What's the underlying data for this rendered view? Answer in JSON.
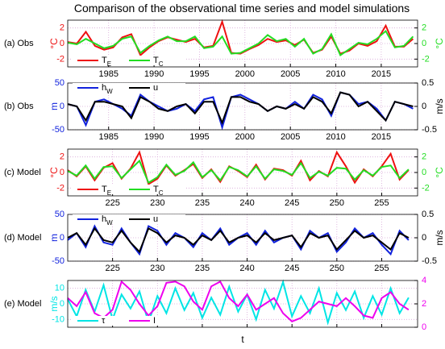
{
  "title": "Comparison of the observational time series and model simulations",
  "chart_data": [
    {
      "type": "line",
      "panel_label": "(a) Obs",
      "ylabel": "°C",
      "y2label": "°C",
      "legend": "lower left",
      "grid": true,
      "x": [
        1980.5,
        1981.5,
        1982.5,
        1983.5,
        1984.5,
        1985.5,
        1986.5,
        1987.5,
        1988.5,
        1989.5,
        1990.5,
        1991.5,
        1992.5,
        1993.5,
        1994.5,
        1995.5,
        1996.5,
        1997.5,
        1998.5,
        1999.5,
        2000.5,
        2001.5,
        2002.5,
        2003.5,
        2004.5,
        2005.5,
        2006.5,
        2007.5,
        2008.5,
        2009.5,
        2010.5,
        2011.5,
        2012.5,
        2013.5,
        2014.5,
        2015.5,
        2016.5,
        2017.5,
        2018.5
      ],
      "xlim": [
        1980.5,
        2019
      ],
      "xticks": [
        1985,
        1990,
        1995,
        2000,
        2005,
        2010,
        2015
      ],
      "ylim": [
        -3,
        3
      ],
      "yticks": [
        -2,
        0,
        2
      ],
      "y2lim": [
        -3,
        3
      ],
      "y2ticks": [
        -2,
        0,
        2
      ],
      "series": [
        {
          "name": "T_E",
          "color": "#ee1111",
          "axis": "y",
          "values": [
            0.2,
            0.0,
            1.5,
            -0.3,
            -0.8,
            -0.5,
            0.8,
            1.2,
            -1.5,
            -0.5,
            0.3,
            0.8,
            0.5,
            0.2,
            0.6,
            -0.5,
            -0.3,
            2.8,
            -1.2,
            -1.3,
            -0.7,
            -0.2,
            0.6,
            0.2,
            0.4,
            -0.2,
            0.5,
            -1.2,
            -0.8,
            0.9,
            -1.3,
            -0.9,
            0.0,
            -0.3,
            0.3,
            2.3,
            -0.4,
            -0.4,
            0.6
          ]
        },
        {
          "name": "T_C",
          "color": "#22dd22",
          "axis": "y2",
          "values": [
            0.1,
            -0.1,
            0.6,
            0.0,
            -0.6,
            -0.3,
            0.6,
            0.9,
            -1.2,
            -0.3,
            0.4,
            0.9,
            0.3,
            0.3,
            0.9,
            -0.6,
            -0.4,
            0.9,
            -1.3,
            -1.2,
            -0.6,
            0.0,
            1.1,
            0.3,
            0.6,
            -0.4,
            0.6,
            -1.3,
            -0.7,
            1.2,
            -1.5,
            -0.7,
            0.1,
            -0.1,
            0.6,
            1.6,
            -0.5,
            -0.3,
            0.9
          ]
        }
      ]
    },
    {
      "type": "line",
      "panel_label": "(b) Obs",
      "ylabel": "m",
      "y2label": "m/s",
      "legend": "upper left",
      "grid": true,
      "x": [
        1980.5,
        1981.5,
        1982.5,
        1983.5,
        1984.5,
        1985.5,
        1986.5,
        1987.5,
        1988.5,
        1989.5,
        1990.5,
        1991.5,
        1992.5,
        1993.5,
        1994.5,
        1995.5,
        1996.5,
        1997.5,
        1998.5,
        1999.5,
        2000.5,
        2001.5,
        2002.5,
        2003.5,
        2004.5,
        2005.5,
        2006.5,
        2007.5,
        2008.5,
        2009.5,
        2010.5,
        2011.5,
        2012.5,
        2013.5,
        2014.5,
        2015.5,
        2016.5,
        2017.5,
        2018.5
      ],
      "xlim": [
        1980.5,
        2019
      ],
      "xticks": [
        1985,
        1990,
        1995,
        2000,
        2005,
        2010,
        2015
      ],
      "ylim": [
        -50,
        50
      ],
      "yticks": [
        -50,
        0,
        50
      ],
      "y2lim": [
        -0.5,
        0.5
      ],
      "y2ticks": [
        -0.5,
        0,
        0.5
      ],
      "series": [
        {
          "name": "h_W",
          "color": "#1122dd",
          "axis": "y",
          "values": [
            5,
            0,
            -40,
            10,
            15,
            5,
            -5,
            -20,
            25,
            10,
            0,
            -10,
            -5,
            5,
            -10,
            15,
            20,
            -45,
            20,
            25,
            15,
            5,
            -10,
            0,
            -5,
            10,
            -5,
            25,
            15,
            -20,
            30,
            25,
            5,
            10,
            -5,
            -30,
            10,
            5,
            -5
          ]
        },
        {
          "name": "u",
          "color": "#000000",
          "axis": "y2",
          "values": [
            0.05,
            0,
            -0.3,
            0.1,
            0.1,
            0.05,
            0.0,
            -0.25,
            0.2,
            0.1,
            -0.05,
            -0.1,
            0.0,
            0.05,
            -0.15,
            0.1,
            0.1,
            -0.35,
            0.2,
            0.2,
            0.1,
            0.05,
            -0.1,
            0.0,
            -0.05,
            0.05,
            -0.05,
            0.2,
            0.1,
            -0.15,
            0.3,
            0.25,
            0.0,
            0.1,
            -0.1,
            -0.3,
            0.1,
            0.05,
            0.0
          ]
        }
      ]
    },
    {
      "type": "line",
      "panel_label": "(c) Model",
      "ylabel": "°C",
      "y2label": "°C",
      "legend": "lower left",
      "grid": true,
      "x": [
        220,
        221,
        222,
        223,
        224,
        225,
        226,
        227,
        228,
        229,
        230,
        231,
        232,
        233,
        234,
        235,
        236,
        237,
        238,
        239,
        240,
        241,
        242,
        243,
        244,
        245,
        246,
        247,
        248,
        249,
        250,
        251,
        252,
        253,
        254,
        255,
        256,
        257,
        258
      ],
      "xlim": [
        220,
        259
      ],
      "xticks": [
        225,
        230,
        235,
        240,
        245,
        250,
        255
      ],
      "ylim": [
        -3,
        3
      ],
      "yticks": [
        -2,
        0,
        2
      ],
      "y2lim": [
        -3,
        3
      ],
      "y2ticks": [
        -2,
        0,
        2
      ],
      "series": [
        {
          "name": "T_E",
          "color": "#ee1111",
          "axis": "y",
          "values": [
            0.3,
            -0.5,
            0.8,
            -1.0,
            0.6,
            1.2,
            -0.8,
            0.5,
            2.6,
            -1.5,
            -0.8,
            0.9,
            -0.4,
            0.3,
            1.1,
            -0.7,
            0.4,
            -1.2,
            0.8,
            0.2,
            -0.6,
            1.0,
            -0.9,
            0.5,
            0.3,
            -0.4,
            1.5,
            -1.0,
            0.2,
            -0.5,
            2.6,
            0.8,
            -1.3,
            0.4,
            -0.5,
            0.8,
            2.4,
            -0.9,
            0.3
          ]
        },
        {
          "name": "T_C",
          "color": "#22dd22",
          "axis": "y2",
          "values": [
            0.2,
            -0.4,
            0.9,
            -0.8,
            0.7,
            0.8,
            -0.7,
            0.4,
            1.5,
            -1.3,
            -0.6,
            1.0,
            -0.3,
            0.2,
            1.3,
            -0.6,
            0.3,
            -1.0,
            0.7,
            0.3,
            -0.5,
            0.8,
            -0.8,
            0.4,
            0.2,
            -0.3,
            1.2,
            -0.7,
            0.1,
            -0.4,
            0.6,
            0.5,
            -0.9,
            0.3,
            -0.4,
            0.7,
            0.9,
            -0.7,
            0.4
          ]
        }
      ]
    },
    {
      "type": "line",
      "panel_label": "(d) Model",
      "ylabel": "m",
      "y2label": "m/s",
      "legend": "upper left",
      "grid": true,
      "x": [
        220,
        221,
        222,
        223,
        224,
        225,
        226,
        227,
        228,
        229,
        230,
        231,
        232,
        233,
        234,
        235,
        236,
        237,
        238,
        239,
        240,
        241,
        242,
        243,
        244,
        245,
        246,
        247,
        248,
        249,
        250,
        251,
        252,
        253,
        254,
        255,
        256,
        257,
        258
      ],
      "xlim": [
        220,
        259
      ],
      "xticks": [
        225,
        230,
        235,
        240,
        245,
        250,
        255
      ],
      "ylim": [
        -50,
        50
      ],
      "yticks": [
        -50,
        0,
        50
      ],
      "y2lim": [
        -0.5,
        0.5
      ],
      "y2ticks": [
        -0.5,
        0,
        0.5
      ],
      "series": [
        {
          "name": "h_W",
          "color": "#1122dd",
          "axis": "y",
          "values": [
            -5,
            10,
            -20,
            25,
            -10,
            -15,
            20,
            -10,
            -35,
            25,
            15,
            -15,
            10,
            0,
            -20,
            10,
            -5,
            20,
            -15,
            0,
            10,
            -15,
            15,
            -10,
            0,
            5,
            -25,
            15,
            0,
            10,
            -30,
            -10,
            20,
            0,
            10,
            -15,
            -35,
            15,
            -5
          ]
        },
        {
          "name": "u",
          "color": "#000000",
          "axis": "y2",
          "values": [
            0,
            0.1,
            -0.15,
            0.2,
            -0.05,
            -0.1,
            0.15,
            -0.1,
            -0.3,
            0.2,
            0.1,
            -0.1,
            0.05,
            0,
            -0.15,
            0.05,
            -0.05,
            0.15,
            -0.1,
            0,
            0.05,
            -0.1,
            0.1,
            -0.05,
            0,
            0.05,
            -0.2,
            0.1,
            0,
            0.05,
            -0.25,
            -0.05,
            0.15,
            0,
            0.05,
            -0.1,
            -0.25,
            0.1,
            0
          ]
        }
      ]
    },
    {
      "type": "line",
      "panel_label": "(e) Model",
      "ylabel": "m/s",
      "xlabel": "t",
      "legend": "lower left",
      "grid": true,
      "show_xtick_labels": false,
      "x": [
        220,
        221,
        222,
        223,
        224,
        225,
        226,
        227,
        228,
        229,
        230,
        231,
        232,
        233,
        234,
        235,
        236,
        237,
        238,
        239,
        240,
        241,
        242,
        243,
        244,
        245,
        246,
        247,
        248,
        249,
        250,
        251,
        252,
        253,
        254,
        255,
        256,
        257,
        258
      ],
      "xlim": [
        220,
        259
      ],
      "xticks": [
        225,
        230,
        235,
        240,
        245,
        250,
        255
      ],
      "ylim": [
        -15,
        15
      ],
      "yticks": [
        -10,
        0,
        10
      ],
      "y2lim": [
        0,
        4
      ],
      "y2ticks": [
        0,
        2,
        4
      ],
      "series": [
        {
          "name": "τ",
          "color": "#00e5e5",
          "axis": "y",
          "values": [
            3,
            -8,
            9,
            -5,
            12,
            -10,
            6,
            -3,
            8,
            -12,
            5,
            -6,
            10,
            -4,
            7,
            -9,
            4,
            -7,
            11,
            -5,
            6,
            -10,
            9,
            -3,
            14,
            -8,
            5,
            -6,
            10,
            -12,
            7,
            -4,
            8,
            -9,
            5,
            -7,
            10,
            -6,
            4
          ]
        },
        {
          "name": "I",
          "color": "#ee00ee",
          "axis": "y2",
          "values": [
            2.5,
            1.8,
            3.0,
            1.2,
            0.8,
            1.5,
            3.9,
            3.2,
            2.0,
            1.0,
            1.8,
            3.8,
            3.9,
            3.5,
            2.2,
            1.5,
            3.5,
            3.9,
            2.5,
            1.8,
            2.8,
            1.5,
            2.0,
            2.5,
            1.2,
            0.5,
            0.8,
            1.5,
            2.2,
            2.0,
            1.8,
            2.5,
            1.8,
            1.0,
            0.8,
            2.5,
            3.0,
            2.0,
            1.5
          ]
        }
      ]
    }
  ]
}
